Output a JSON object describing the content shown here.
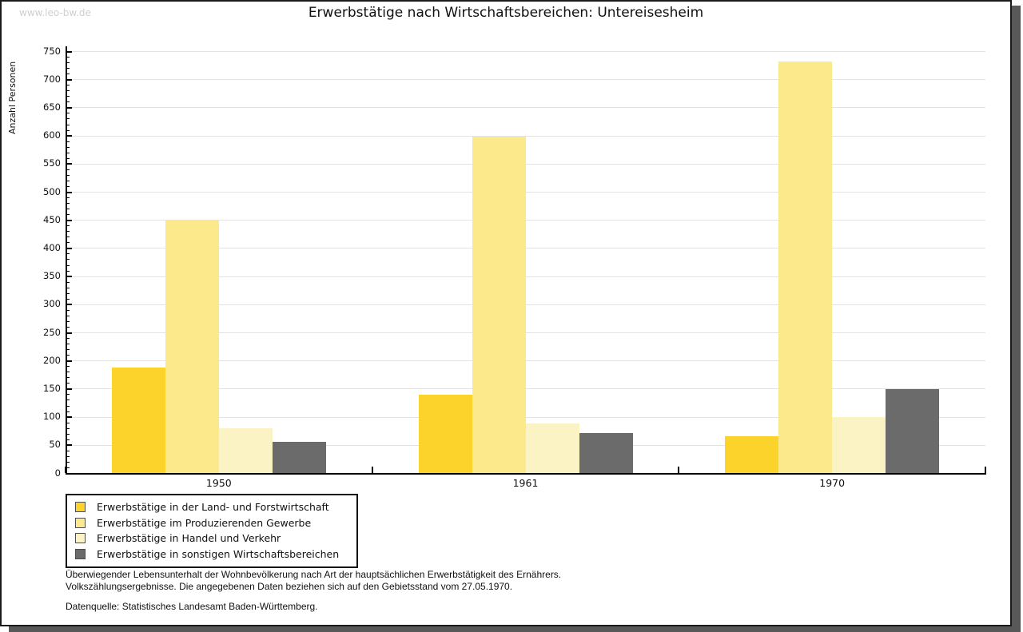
{
  "page": {
    "watermark": "www.leo-bw.de",
    "title": "Erwerbstätige nach Wirtschaftsbereichen: Untereisesheim"
  },
  "chart_data": {
    "type": "bar",
    "title": "Erwerbstätige nach Wirtschaftsbereichen: Untereisesheim",
    "xlabel": "",
    "ylabel": "Anzahl Personen",
    "categories": [
      "1950",
      "1961",
      "1970"
    ],
    "series": [
      {
        "name": "Erwerbstätige in der Land- und Forstwirtschaft",
        "color": "#FBD32B",
        "values": [
          187,
          139,
          66
        ]
      },
      {
        "name": "Erwerbstätige im Produzierenden Gewerbe",
        "color": "#FBE98B",
        "values": [
          450,
          598,
          732
        ]
      },
      {
        "name": "Erwerbstätige in Handel und Verkehr",
        "color": "#FBF3C3",
        "values": [
          79,
          88,
          100
        ]
      },
      {
        "name": "Erwerbstätige in sonstigen Wirtschaftsbereichen",
        "color": "#6B6B6B",
        "values": [
          55,
          71,
          149
        ]
      }
    ],
    "ylim": [
      0,
      750
    ],
    "ytick_major": 50,
    "ytick_minor": 10,
    "grid": true,
    "legend_position": "bottom-left"
  },
  "footer": {
    "line1": "Überwiegender Lebensunterhalt der Wohnbevölkerung nach Art der hauptsächlichen Erwerbstätigkeit des Ernährers.",
    "line2": "Volkszählungsergebnisse. Die angegebenen Daten beziehen sich auf den Gebietsstand vom 27.05.1970.",
    "source": "Datenquelle: Statistisches Landesamt Baden-Württemberg."
  }
}
